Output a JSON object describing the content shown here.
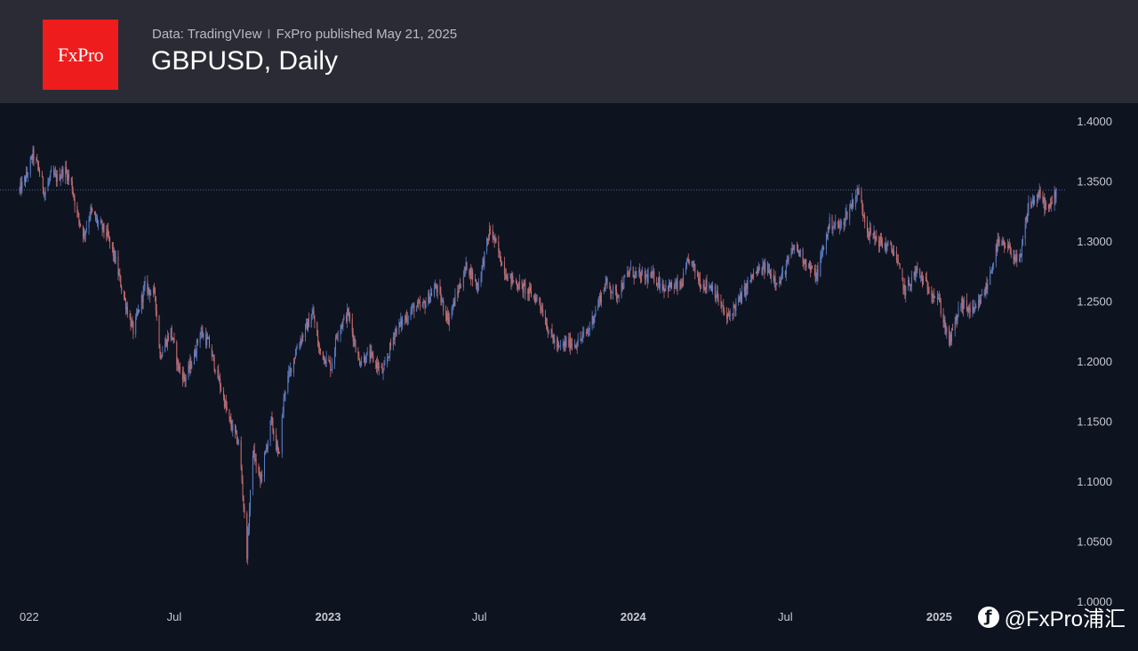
{
  "header": {
    "logo_text": "FxPro",
    "source": "Data: TradingVIew",
    "separator": "I",
    "published": "FxPro published May 21, 2025",
    "title": "GBPUSD, Daily"
  },
  "watermark": {
    "icon": "weibo-logo-icon",
    "text": "@FxPro浦汇"
  },
  "colors": {
    "background": "#0e1320",
    "header_bg": "#2a2b34",
    "logo_bg": "#ee1c1c",
    "up": "#5b7fc4",
    "down": "#c96f6f",
    "reference_line": "#4a6a99",
    "axis_text": "#c8c9cf"
  },
  "chart_data": {
    "type": "line",
    "title": "GBPUSD, Daily",
    "x_tick_labels": [
      "022",
      "Jul",
      "2023",
      "Jul",
      "2024",
      "Jul",
      "2025"
    ],
    "x_tick_dates": [
      "2022-01",
      "2022-07",
      "2023-01",
      "2023-07",
      "2024-01",
      "2024-07",
      "2025-01"
    ],
    "y_tick_labels": [
      "1.4000",
      "1.3500",
      "1.3000",
      "1.2500",
      "1.2000",
      "1.1500",
      "1.1000",
      "1.0500",
      "1.0000"
    ],
    "ylim": [
      1.0,
      1.4
    ],
    "reference_level": 1.3425,
    "series": [
      {
        "values": [
          [
            "2021-12-28",
            1.342
          ],
          [
            "2022-01-06",
            1.355
          ],
          [
            "2022-01-13",
            1.372
          ],
          [
            "2022-01-20",
            1.36
          ],
          [
            "2022-01-27",
            1.34
          ],
          [
            "2022-02-04",
            1.355
          ],
          [
            "2022-02-11",
            1.352
          ],
          [
            "2022-02-20",
            1.36
          ],
          [
            "2022-02-28",
            1.348
          ],
          [
            "2022-03-07",
            1.322
          ],
          [
            "2022-03-15",
            1.305
          ],
          [
            "2022-03-23",
            1.325
          ],
          [
            "2022-04-01",
            1.315
          ],
          [
            "2022-04-12",
            1.305
          ],
          [
            "2022-04-22",
            1.283
          ],
          [
            "2022-05-01",
            1.255
          ],
          [
            "2022-05-13",
            1.225
          ],
          [
            "2022-05-27",
            1.262
          ],
          [
            "2022-06-08",
            1.255
          ],
          [
            "2022-06-14",
            1.205
          ],
          [
            "2022-06-27",
            1.225
          ],
          [
            "2022-07-06",
            1.195
          ],
          [
            "2022-07-14",
            1.185
          ],
          [
            "2022-07-25",
            1.205
          ],
          [
            "2022-08-01",
            1.225
          ],
          [
            "2022-08-11",
            1.215
          ],
          [
            "2022-08-25",
            1.18
          ],
          [
            "2022-09-05",
            1.15
          ],
          [
            "2022-09-17",
            1.13
          ],
          [
            "2022-09-26",
            1.04
          ],
          [
            "2022-10-03",
            1.125
          ],
          [
            "2022-10-12",
            1.1
          ],
          [
            "2022-10-25",
            1.15
          ],
          [
            "2022-11-03",
            1.12
          ],
          [
            "2022-11-10",
            1.175
          ],
          [
            "2022-11-24",
            1.21
          ],
          [
            "2022-12-14",
            1.24
          ],
          [
            "2022-12-21",
            1.21
          ],
          [
            "2023-01-05",
            1.195
          ],
          [
            "2023-01-12",
            1.225
          ],
          [
            "2023-01-25",
            1.24
          ],
          [
            "2023-02-07",
            1.2
          ],
          [
            "2023-02-20",
            1.205
          ],
          [
            "2023-03-08",
            1.19
          ],
          [
            "2023-03-22",
            1.225
          ],
          [
            "2023-04-14",
            1.245
          ],
          [
            "2023-04-24",
            1.245
          ],
          [
            "2023-05-10",
            1.262
          ],
          [
            "2023-05-25",
            1.235
          ],
          [
            "2023-06-16",
            1.28
          ],
          [
            "2023-06-29",
            1.262
          ],
          [
            "2023-07-14",
            1.31
          ],
          [
            "2023-07-28",
            1.282
          ],
          [
            "2023-08-04",
            1.27
          ],
          [
            "2023-08-24",
            1.26
          ],
          [
            "2023-09-11",
            1.25
          ],
          [
            "2023-09-22",
            1.225
          ],
          [
            "2023-10-04",
            1.21
          ],
          [
            "2023-10-13",
            1.215
          ],
          [
            "2023-10-26",
            1.215
          ],
          [
            "2023-11-08",
            1.225
          ],
          [
            "2023-11-29",
            1.265
          ],
          [
            "2023-12-12",
            1.255
          ],
          [
            "2023-12-28",
            1.275
          ],
          [
            "2024-01-10",
            1.27
          ],
          [
            "2024-01-25",
            1.27
          ],
          [
            "2024-02-07",
            1.262
          ],
          [
            "2024-02-27",
            1.262
          ],
          [
            "2024-03-08",
            1.285
          ],
          [
            "2024-03-22",
            1.265
          ],
          [
            "2024-04-05",
            1.262
          ],
          [
            "2024-04-22",
            1.235
          ],
          [
            "2024-05-08",
            1.252
          ],
          [
            "2024-05-24",
            1.272
          ],
          [
            "2024-06-07",
            1.278
          ],
          [
            "2024-06-24",
            1.265
          ],
          [
            "2024-07-12",
            1.296
          ],
          [
            "2024-07-26",
            1.282
          ],
          [
            "2024-08-07",
            1.27
          ],
          [
            "2024-08-23",
            1.315
          ],
          [
            "2024-09-05",
            1.312
          ],
          [
            "2024-09-26",
            1.342
          ],
          [
            "2024-10-08",
            1.308
          ],
          [
            "2024-10-24",
            1.298
          ],
          [
            "2024-11-08",
            1.292
          ],
          [
            "2024-11-21",
            1.258
          ],
          [
            "2024-12-05",
            1.275
          ],
          [
            "2024-12-18",
            1.262
          ],
          [
            "2024-12-31",
            1.252
          ],
          [
            "2025-01-13",
            1.215
          ],
          [
            "2025-01-27",
            1.248
          ],
          [
            "2025-02-12",
            1.24
          ],
          [
            "2025-02-27",
            1.262
          ],
          [
            "2025-03-12",
            1.298
          ],
          [
            "2025-03-28",
            1.292
          ],
          [
            "2025-04-07",
            1.28
          ],
          [
            "2025-04-18",
            1.33
          ],
          [
            "2025-05-01",
            1.338
          ],
          [
            "2025-05-12",
            1.325
          ],
          [
            "2025-05-21",
            1.342
          ]
        ]
      }
    ]
  }
}
